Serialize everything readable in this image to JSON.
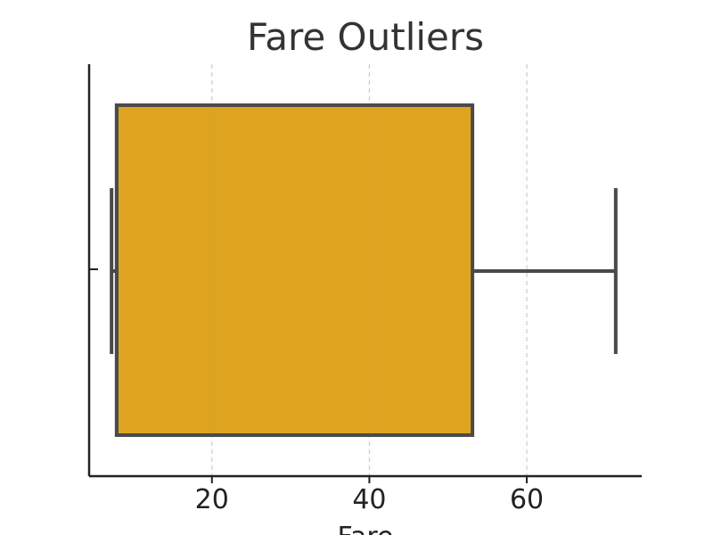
{
  "chart_data": {
    "type": "box",
    "title": "Fare Outliers",
    "xlabel": "Fare",
    "ylabel": "",
    "xlim": [
      4.4,
      74.6
    ],
    "xticks": [
      20,
      40,
      60
    ],
    "grid": "x",
    "orientation": "horizontal",
    "box": {
      "whisker_low": 7.25,
      "q1": 7.9,
      "median": 7.9,
      "q3": 53.1,
      "whisker_high": 71.3
    },
    "colors": {
      "box_fill": "#DEA420",
      "box_edge": "#4A4A4A",
      "grid": "#CCCCCC",
      "axis": "#222222"
    }
  }
}
